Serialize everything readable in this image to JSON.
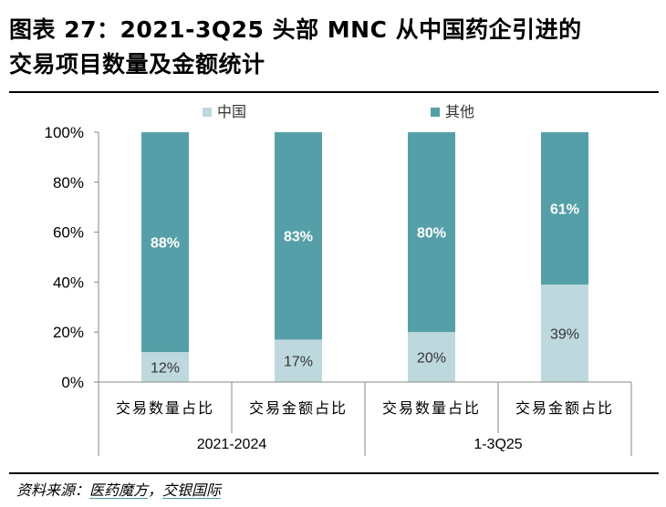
{
  "title_line1": "图表 27：2021-3Q25 头部 MNC 从中国药企引进的",
  "title_line2": "交易项目数量及金额统计",
  "source": {
    "prefix": "资料来源：",
    "name1": "医药魔方",
    "separator": "，",
    "name2": "交银国际"
  },
  "colors": {
    "china": "#bed9de",
    "other": "#55a0a8",
    "label_light": "#ffffff",
    "label_dark": "#333333"
  },
  "chart_data": {
    "type": "bar",
    "stacked": true,
    "percent": true,
    "ylim": [
      0,
      100
    ],
    "yticks": [
      "0%",
      "20%",
      "40%",
      "60%",
      "80%",
      "100%"
    ],
    "categories": [
      "交易数量占比",
      "交易金额占比",
      "交易数量占比",
      "交易金额占比"
    ],
    "groups": [
      {
        "label": "2021-2024",
        "span": [
          0,
          1
        ]
      },
      {
        "label": "1-3Q25",
        "span": [
          2,
          3
        ]
      }
    ],
    "series": [
      {
        "name": "中国",
        "values": [
          12,
          17,
          20,
          39
        ],
        "labels": [
          "12%",
          "17%",
          "20%",
          "39%"
        ]
      },
      {
        "name": "其他",
        "values": [
          88,
          83,
          80,
          61
        ],
        "labels": [
          "88%",
          "83%",
          "80%",
          "61%"
        ]
      }
    ],
    "legend_position": "top"
  }
}
